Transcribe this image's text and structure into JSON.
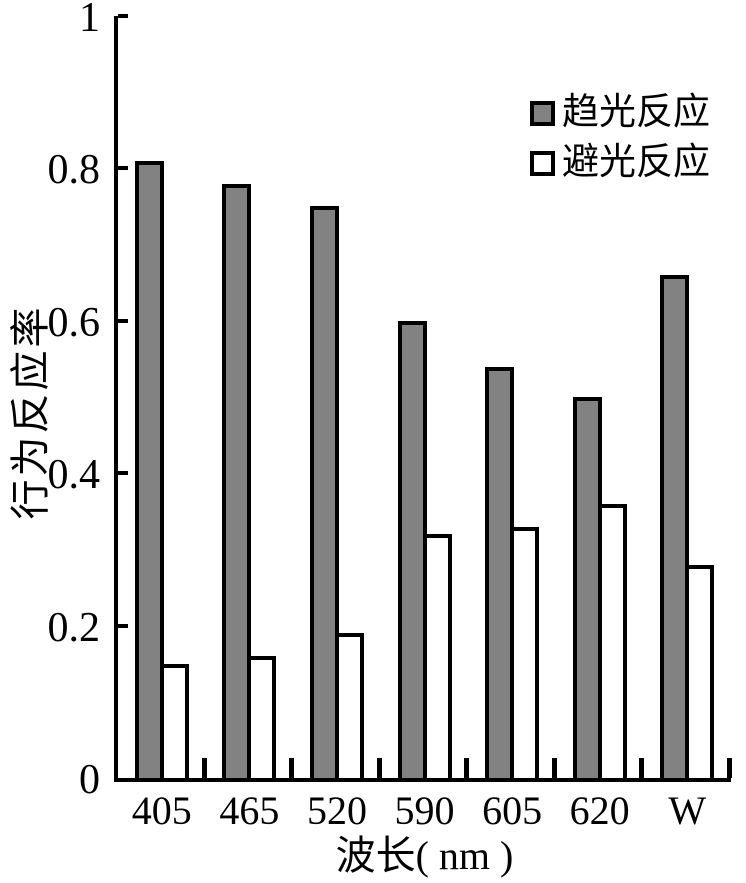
{
  "chart_data": {
    "type": "bar",
    "title": "",
    "categories": [
      "405",
      "465",
      "520",
      "590",
      "605",
      "620",
      "W"
    ],
    "series": [
      {
        "name": "趋光反应",
        "key": "phototaxis",
        "fill": "#828282",
        "values": [
          0.81,
          0.78,
          0.75,
          0.6,
          0.54,
          0.5,
          0.66
        ]
      },
      {
        "name": "避光反应",
        "key": "avoidance",
        "fill": "#ffffff",
        "values": [
          0.15,
          0.16,
          0.19,
          0.32,
          0.33,
          0.36,
          0.28
        ]
      }
    ],
    "xlabel": "波长( nm )",
    "ylabel": "行为反应率",
    "ylim": [
      0,
      1
    ],
    "yticks": [
      0,
      0.2,
      0.4,
      0.6,
      0.8,
      1
    ],
    "ytick_labels": [
      "0",
      "0.2",
      "0.4",
      "0.6",
      "0.8",
      "1"
    ],
    "bar_outline": "#000000",
    "legend_position": "top-right",
    "grid": false
  }
}
